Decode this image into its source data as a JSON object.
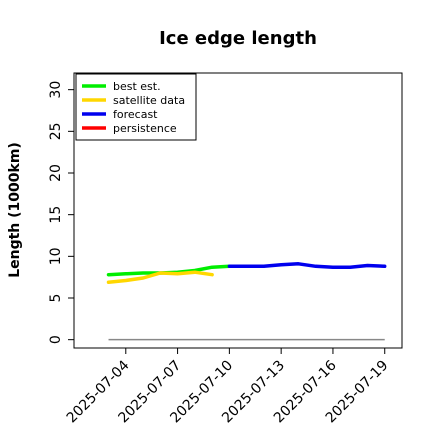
{
  "chart_data": {
    "type": "line",
    "title": "Ice edge length",
    "xlabel": "",
    "ylabel": "Length (1000km)",
    "ylim": [
      -1,
      32
    ],
    "xlim": [
      "2025-07-01",
      "2025-07-20"
    ],
    "yticks": [
      0,
      5,
      10,
      15,
      20,
      25,
      30
    ],
    "xticks": [
      {
        "label": "2025-07-04",
        "date": "2025-07-04",
        "color": "#000000"
      },
      {
        "label": "2025-07-07",
        "date": "2025-07-07",
        "color": "#000000"
      },
      {
        "label": "2025-07-10",
        "date": "2025-07-10",
        "color": "#228b22"
      },
      {
        "label": "2025-07-13",
        "date": "2025-07-13",
        "color": "#000000"
      },
      {
        "label": "2025-07-16",
        "date": "2025-07-16",
        "color": "#000000"
      },
      {
        "label": "2025-07-19",
        "date": "2025-07-19",
        "color": "#000000"
      }
    ],
    "legend_position": "top-left",
    "grid": false,
    "baseline": {
      "y": 0,
      "x_start": "2025-07-03",
      "x_end": "2025-07-19",
      "color": "#888888"
    },
    "series": [
      {
        "name": "best est.",
        "color": "#00ee00",
        "points": [
          [
            "2025-07-03",
            7.8
          ],
          [
            "2025-07-04",
            7.9
          ],
          [
            "2025-07-05",
            8.0
          ],
          [
            "2025-07-06",
            8.0
          ],
          [
            "2025-07-07",
            8.1
          ],
          [
            "2025-07-08",
            8.3
          ],
          [
            "2025-07-09",
            8.7
          ],
          [
            "2025-07-10",
            8.8
          ]
        ]
      },
      {
        "name": "satellite data",
        "color": "#ffd700",
        "points": [
          [
            "2025-07-03",
            6.9
          ],
          [
            "2025-07-04",
            7.1
          ],
          [
            "2025-07-05",
            7.4
          ],
          [
            "2025-07-06",
            8.0
          ],
          [
            "2025-07-07",
            7.9
          ],
          [
            "2025-07-08",
            8.1
          ],
          [
            "2025-07-09",
            7.8
          ]
        ]
      },
      {
        "name": "forecast",
        "color": "#0000ee",
        "points": [
          [
            "2025-07-10",
            8.8
          ],
          [
            "2025-07-11",
            8.8
          ],
          [
            "2025-07-12",
            8.8
          ],
          [
            "2025-07-13",
            9.0
          ],
          [
            "2025-07-14",
            9.1
          ],
          [
            "2025-07-15",
            8.8
          ],
          [
            "2025-07-16",
            8.7
          ],
          [
            "2025-07-17",
            8.7
          ],
          [
            "2025-07-18",
            8.9
          ],
          [
            "2025-07-19",
            8.8
          ]
        ]
      },
      {
        "name": "persistence",
        "color": "#ff0000",
        "points": []
      }
    ]
  }
}
